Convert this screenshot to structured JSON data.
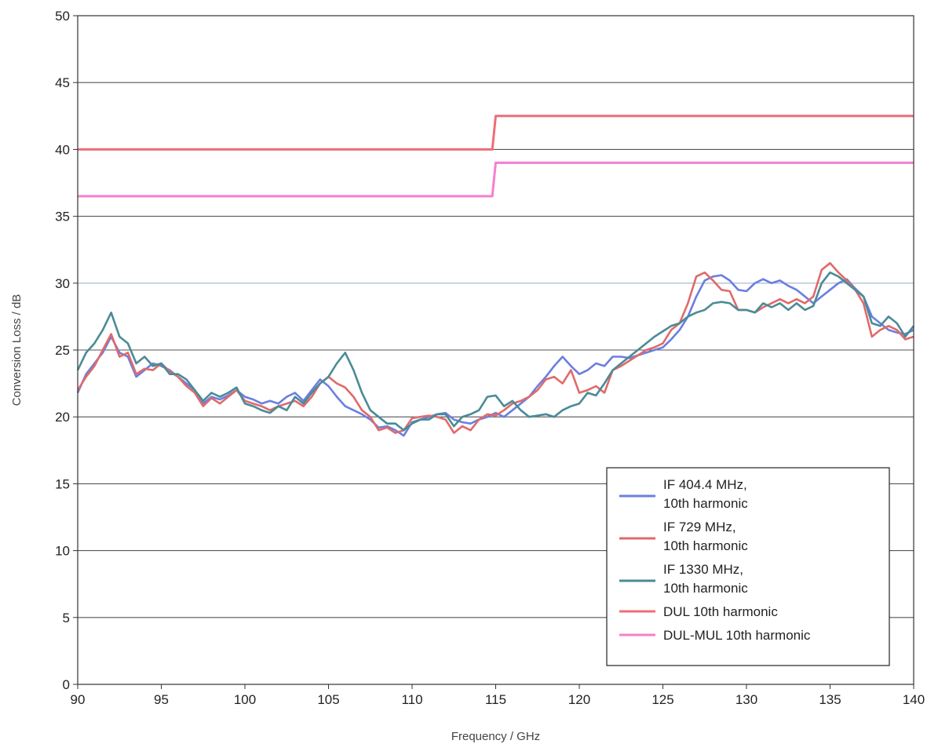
{
  "chart_data": {
    "type": "line",
    "title": "",
    "xlabel": "Frequency / GHz",
    "ylabel": "Conversion Loss / dB",
    "xlim": [
      90,
      140
    ],
    "ylim": [
      0,
      50
    ],
    "xticks": [
      90,
      95,
      100,
      105,
      110,
      115,
      120,
      125,
      130,
      135,
      140
    ],
    "yticks": [
      0,
      5,
      10,
      15,
      20,
      25,
      30,
      35,
      40,
      45,
      50
    ],
    "grid": "horizontal",
    "legend_position": "bottom-right",
    "series": [
      {
        "name": "IF 404.4 MHz,",
        "name_line2": "10th harmonic",
        "color": "#6b7fe0",
        "x": [
          90,
          90.5,
          91,
          91.5,
          92,
          92.5,
          93,
          93.5,
          94,
          94.5,
          95,
          95.5,
          96,
          96.5,
          97,
          97.5,
          98,
          98.5,
          99,
          99.5,
          100,
          100.5,
          101,
          101.5,
          102,
          102.5,
          103,
          103.5,
          104,
          104.5,
          105,
          105.5,
          106,
          106.5,
          107,
          107.5,
          108,
          108.5,
          109,
          109.5,
          110,
          110.5,
          111,
          111.5,
          112,
          112.5,
          113,
          113.5,
          114,
          114.5,
          115,
          115.5,
          116,
          116.5,
          117,
          117.5,
          118,
          118.5,
          119,
          119.5,
          120,
          120.5,
          121,
          121.5,
          122,
          122.5,
          123,
          123.5,
          124,
          124.5,
          125,
          125.5,
          126,
          126.5,
          127,
          127.5,
          128,
          128.5,
          129,
          129.5,
          130,
          130.5,
          131,
          131.5,
          132,
          132.5,
          133,
          133.5,
          134,
          134.5,
          135,
          135.5,
          136,
          136.5,
          137,
          137.5,
          138,
          138.5,
          139,
          139.5,
          140
        ],
        "values": [
          21.8,
          23.2,
          24.0,
          24.8,
          26.0,
          24.8,
          24.5,
          23.0,
          23.5,
          24.0,
          23.8,
          23.5,
          23.0,
          22.5,
          22.0,
          21.0,
          21.5,
          21.3,
          21.6,
          22.0,
          21.5,
          21.3,
          21.0,
          21.2,
          21.0,
          21.5,
          21.8,
          21.2,
          22.0,
          22.8,
          22.3,
          21.5,
          20.8,
          20.5,
          20.2,
          19.8,
          19.2,
          19.3,
          19.0,
          18.6,
          19.6,
          19.8,
          20.0,
          20.2,
          20.3,
          19.8,
          19.6,
          19.5,
          19.8,
          20.0,
          20.3,
          20.0,
          20.5,
          21.0,
          21.5,
          22.3,
          23.0,
          23.8,
          24.5,
          23.8,
          23.2,
          23.5,
          24.0,
          23.8,
          24.5,
          24.5,
          24.4,
          24.6,
          24.8,
          25.0,
          25.2,
          25.8,
          26.5,
          27.5,
          29.0,
          30.2,
          30.5,
          30.6,
          30.2,
          29.5,
          29.4,
          30.0,
          30.3,
          30.0,
          30.2,
          29.8,
          29.5,
          29.0,
          28.5,
          29.0,
          29.5,
          30.0,
          30.3,
          29.6,
          29.0,
          27.5,
          27.0,
          26.5,
          26.3,
          26.2,
          26.5
        ],
        "role": "measurement"
      },
      {
        "name": "IF 729 MHz,",
        "name_line2": "10th harmonic",
        "color": "#e06a6a",
        "x": [
          90,
          90.5,
          91,
          91.5,
          92,
          92.5,
          93,
          93.5,
          94,
          94.5,
          95,
          95.5,
          96,
          96.5,
          97,
          97.5,
          98,
          98.5,
          99,
          99.5,
          100,
          100.5,
          101,
          101.5,
          102,
          102.5,
          103,
          103.5,
          104,
          104.5,
          105,
          105.5,
          106,
          106.5,
          107,
          107.5,
          108,
          108.5,
          109,
          109.5,
          110,
          110.5,
          111,
          111.5,
          112,
          112.5,
          113,
          113.5,
          114,
          114.5,
          115,
          115.5,
          116,
          116.5,
          117,
          117.5,
          118,
          118.5,
          119,
          119.5,
          120,
          120.5,
          121,
          121.5,
          122,
          122.5,
          123,
          123.5,
          124,
          124.5,
          125,
          125.5,
          126,
          126.5,
          127,
          127.5,
          128,
          128.5,
          129,
          129.5,
          130,
          130.5,
          131,
          131.5,
          132,
          132.5,
          133,
          133.5,
          134,
          134.5,
          135,
          135.5,
          136,
          136.5,
          137,
          137.5,
          138,
          138.5,
          139,
          139.5,
          140
        ],
        "values": [
          22.0,
          23.0,
          23.8,
          25.0,
          26.2,
          24.5,
          24.8,
          23.2,
          23.6,
          23.5,
          24.0,
          23.4,
          23.0,
          22.3,
          21.8,
          20.8,
          21.4,
          21.0,
          21.5,
          22.0,
          21.2,
          21.0,
          20.8,
          20.5,
          20.8,
          21.0,
          21.2,
          20.8,
          21.5,
          22.5,
          23.0,
          22.5,
          22.2,
          21.5,
          20.5,
          20.0,
          19.0,
          19.2,
          18.8,
          19.0,
          19.9,
          20.0,
          20.1,
          20.0,
          19.8,
          18.8,
          19.3,
          19.0,
          19.8,
          20.2,
          20.1,
          20.5,
          21.0,
          21.2,
          21.5,
          22.0,
          22.8,
          23.0,
          22.5,
          23.5,
          21.8,
          22.0,
          22.3,
          21.8,
          23.5,
          23.8,
          24.2,
          24.6,
          25.0,
          25.2,
          25.5,
          26.5,
          27.0,
          28.5,
          30.5,
          30.8,
          30.2,
          29.5,
          29.4,
          28.0,
          28.0,
          27.8,
          28.2,
          28.5,
          28.8,
          28.5,
          28.8,
          28.5,
          29.0,
          31.0,
          31.5,
          30.8,
          30.2,
          29.5,
          28.5,
          26.0,
          26.5,
          26.8,
          26.5,
          25.8,
          26.0
        ],
        "role": "measurement"
      },
      {
        "name": "IF 1330 MHz,",
        "name_line2": "10th harmonic",
        "color": "#4a8b96",
        "x": [
          90,
          90.5,
          91,
          91.5,
          92,
          92.5,
          93,
          93.5,
          94,
          94.5,
          95,
          95.5,
          96,
          96.5,
          97,
          97.5,
          98,
          98.5,
          99,
          99.5,
          100,
          100.5,
          101,
          101.5,
          102,
          102.5,
          103,
          103.5,
          104,
          104.5,
          105,
          105.5,
          106,
          106.5,
          107,
          107.5,
          108,
          108.5,
          109,
          109.5,
          110,
          110.5,
          111,
          111.5,
          112,
          112.5,
          113,
          113.5,
          114,
          114.5,
          115,
          115.5,
          116,
          116.5,
          117,
          117.5,
          118,
          118.5,
          119,
          119.5,
          120,
          120.5,
          121,
          121.5,
          122,
          122.5,
          123,
          123.5,
          124,
          124.5,
          125,
          125.5,
          126,
          126.5,
          127,
          127.5,
          128,
          128.5,
          129,
          129.5,
          130,
          130.5,
          131,
          131.5,
          132,
          132.5,
          133,
          133.5,
          134,
          134.5,
          135,
          135.5,
          136,
          136.5,
          137,
          137.5,
          138,
          138.5,
          139,
          139.5,
          140
        ],
        "values": [
          23.5,
          24.8,
          25.5,
          26.5,
          27.8,
          26.0,
          25.5,
          24.0,
          24.5,
          23.8,
          24.0,
          23.2,
          23.2,
          22.8,
          22.0,
          21.2,
          21.8,
          21.5,
          21.8,
          22.2,
          21.0,
          20.8,
          20.5,
          20.3,
          20.8,
          20.5,
          21.5,
          21.0,
          21.8,
          22.5,
          23.0,
          24.0,
          24.8,
          23.5,
          21.8,
          20.5,
          20.0,
          19.5,
          19.5,
          19.0,
          19.5,
          19.8,
          19.8,
          20.2,
          20.2,
          19.3,
          20.0,
          20.2,
          20.5,
          21.5,
          21.6,
          20.8,
          21.2,
          20.5,
          20.0,
          20.1,
          20.2,
          20.0,
          20.5,
          20.8,
          21.0,
          21.8,
          21.6,
          22.5,
          23.5,
          24.0,
          24.5,
          25.0,
          25.5,
          26.0,
          26.4,
          26.8,
          27.0,
          27.5,
          27.8,
          28.0,
          28.5,
          28.6,
          28.5,
          28.0,
          28.0,
          27.8,
          28.5,
          28.2,
          28.5,
          28.0,
          28.5,
          28.0,
          28.3,
          30.0,
          30.8,
          30.5,
          30.0,
          29.5,
          29.0,
          27.0,
          26.8,
          27.5,
          27.0,
          26.0,
          26.8
        ],
        "role": "measurement"
      },
      {
        "name": "DUL 10th harmonic",
        "color": "#ec6f79",
        "x": [
          90,
          114.8,
          115.0,
          140
        ],
        "values": [
          40.0,
          40.0,
          42.5,
          42.5
        ],
        "role": "limit"
      },
      {
        "name": "DUL-MUL 10th harmonic",
        "color": "#f57fcf",
        "x": [
          90,
          114.8,
          115.0,
          140
        ],
        "values": [
          36.5,
          36.5,
          39.0,
          39.0
        ],
        "role": "limit"
      }
    ]
  }
}
